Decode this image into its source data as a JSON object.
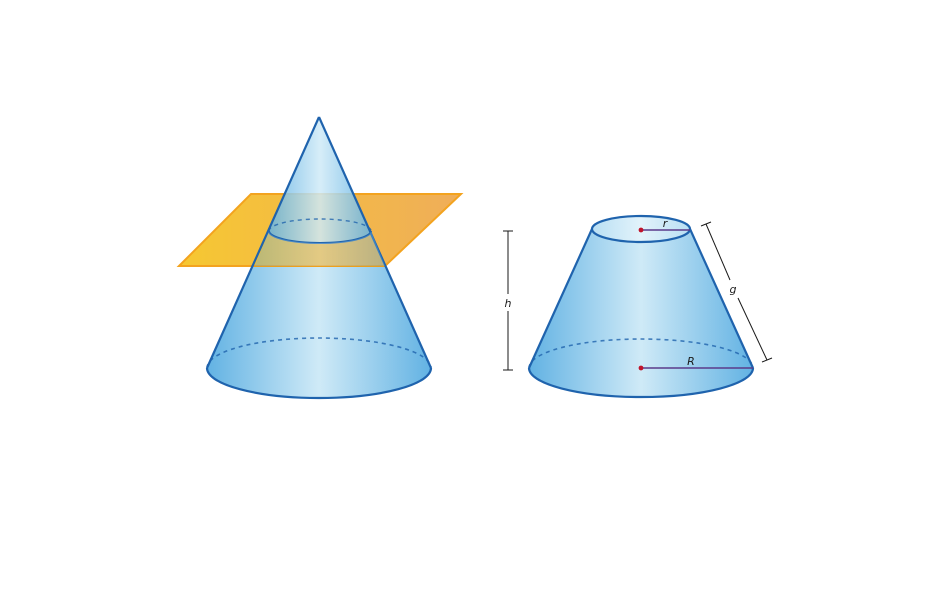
{
  "colors": {
    "outline": "#1f63ad",
    "fill_light": "#cfeaf7",
    "fill_dark": "#62b2e3",
    "plane_left": "#f6c21c",
    "plane_right": "#eea548",
    "plane_edge": "#f29a07",
    "radius_line": "#5a3a8a",
    "center_dot": "#c0142b",
    "dim_line": "#1a1a1a"
  },
  "labels": {
    "height": "h",
    "slant": "g",
    "small_radius": "r",
    "large_radius": "R"
  }
}
